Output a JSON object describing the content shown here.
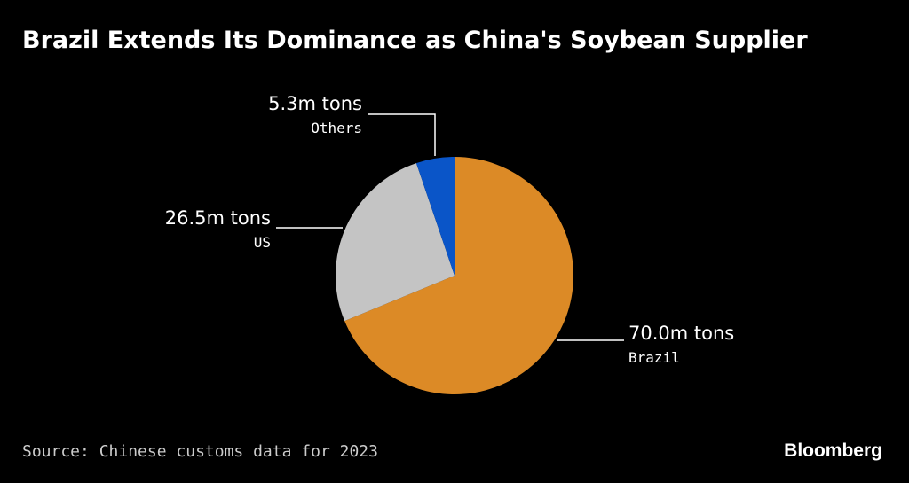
{
  "chart_data": {
    "type": "pie",
    "title": "Brazil Extends Its Dominance as China's Soybean Supplier",
    "unit": "m tons",
    "slices": [
      {
        "name": "Brazil",
        "value": 70.0,
        "value_label": "70.0m tons",
        "color": "#dc8a26"
      },
      {
        "name": "US",
        "value": 26.5,
        "value_label": "26.5m tons",
        "color": "#c4c4c4"
      },
      {
        "name": "Others",
        "value": 5.3,
        "value_label": "5.3m tons",
        "color": "#0a55c8"
      }
    ],
    "start": "12 o'clock",
    "direction": "clockwise",
    "source": "Source: Chinese customs data for 2023"
  },
  "branding": {
    "logo_text": "Bloomberg"
  }
}
